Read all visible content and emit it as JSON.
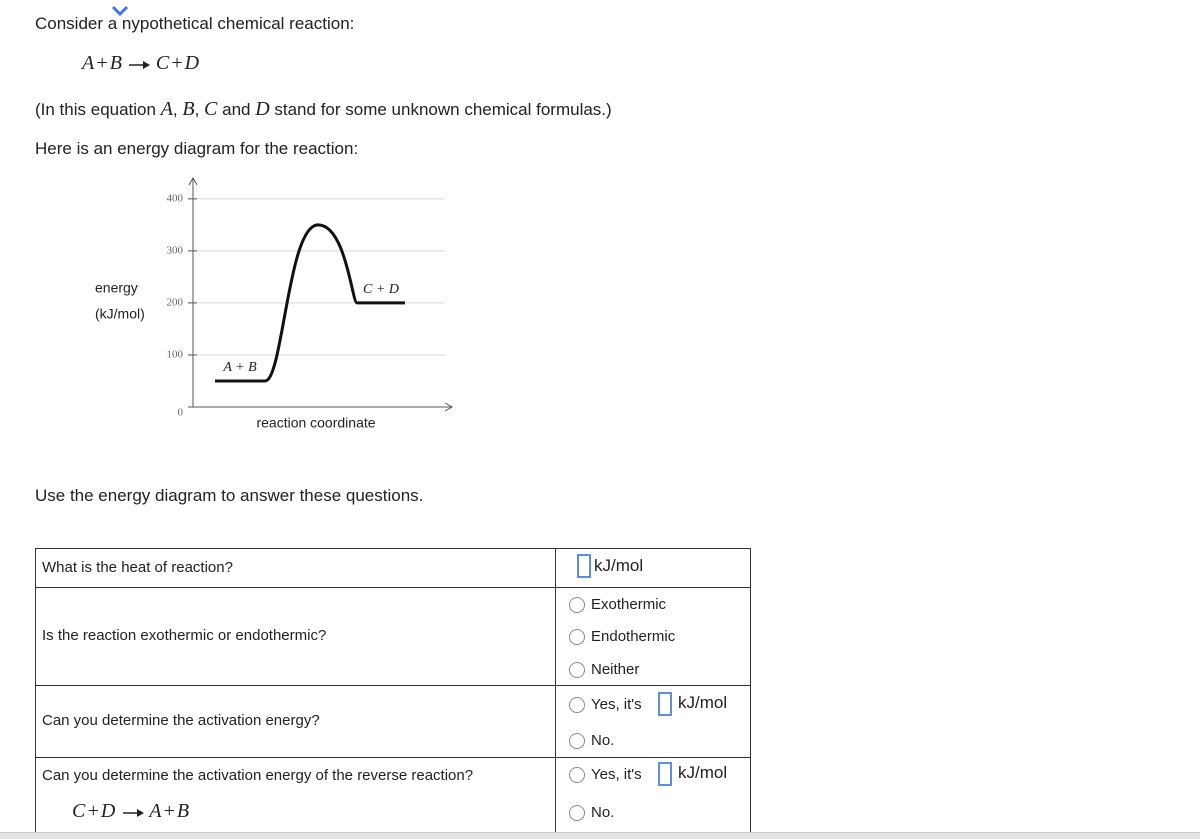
{
  "intro": "Consider a hypothetical chemical reaction:",
  "equation": {
    "reactants": "A+B",
    "products": "C+D"
  },
  "note": [
    "(In this equation ",
    "A",
    ", ",
    "B",
    ", ",
    "C",
    " and ",
    "D",
    " stand for some unknown chemical formulas.)"
  ],
  "diagram_intro": "Here is an energy diagram for the reaction:",
  "diagram": {
    "y_label": [
      "energy",
      "(kJ/mol)"
    ],
    "x_label": "reaction coordinate",
    "ylim": [
      0,
      440
    ],
    "yticks": [
      0,
      100,
      200,
      300,
      400
    ],
    "levels": [
      {
        "label": "A + B",
        "energy": 50
      },
      {
        "label": "C + D",
        "energy": 200
      }
    ],
    "peak": 350
  },
  "instruction": "Use the energy diagram to answer these questions.",
  "questions": [
    {
      "text": "What is the heat of reaction?",
      "unit": "kJ/mol"
    },
    {
      "text": "Is the reaction exothermic or endothermic?",
      "options": [
        "Exothermic",
        "Endothermic",
        "Neither"
      ]
    },
    {
      "text": "Can you determine the activation energy?",
      "options": [
        "Yes, it's",
        "No."
      ],
      "unit": "kJ/mol"
    },
    {
      "text": "Can you determine the activation energy of the reverse reaction?",
      "equation": {
        "reactants": "C+D",
        "products": "A+B"
      },
      "options": [
        "Yes, it's",
        "No."
      ],
      "unit": "kJ/mol"
    }
  ]
}
